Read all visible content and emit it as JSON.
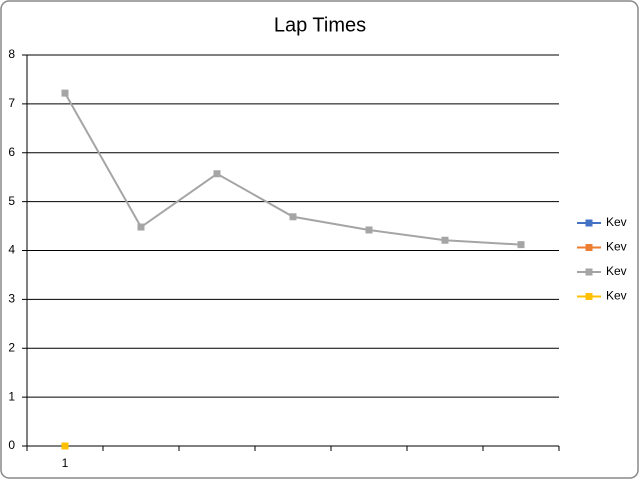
{
  "chart_data": {
    "type": "line",
    "title": "Lap Times",
    "categories": [
      "1",
      null,
      null,
      null,
      null,
      null,
      null
    ],
    "series": [
      {
        "name": "Kev",
        "color": "#4472c4",
        "values": [
          null,
          null,
          null,
          null,
          null,
          null,
          null
        ]
      },
      {
        "name": "Kev",
        "color": "#ed7d31",
        "values": [
          null,
          null,
          null,
          null,
          null,
          null,
          null
        ]
      },
      {
        "name": "Kev",
        "color": "#a5a5a5",
        "values": [
          7.22,
          4.48,
          5.57,
          4.69,
          4.42,
          4.21,
          4.12
        ]
      },
      {
        "name": "Kev",
        "color": "#ffc000",
        "values": [
          0,
          null,
          null,
          null,
          null,
          null,
          null
        ]
      }
    ],
    "ylim": [
      0,
      8
    ],
    "yticks": [
      0,
      1,
      2,
      3,
      4,
      5,
      6,
      7,
      8
    ],
    "grid": true,
    "legend": "right"
  }
}
